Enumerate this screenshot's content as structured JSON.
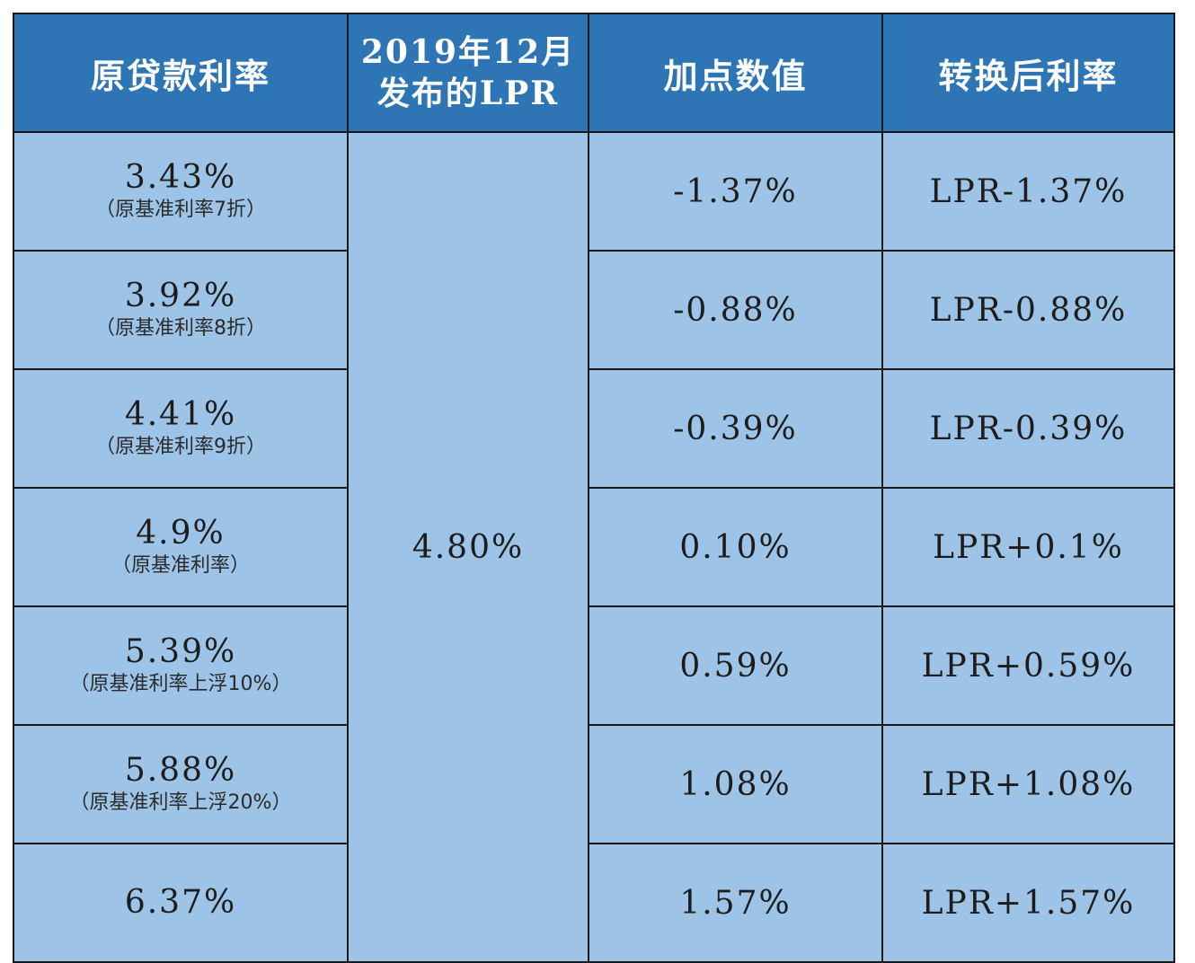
{
  "headers": {
    "original_rate": "原贷款利率",
    "lpr_line1": "2019年12月",
    "lpr_line2": "发布的LPR",
    "spread": "加点数值",
    "converted_rate": "转换后利率"
  },
  "lpr_value": "4.80%",
  "rows": [
    {
      "rate": "3.43%",
      "note": "（原基准利率7折）",
      "spread": "-1.37%",
      "converted": "LPR-1.37%"
    },
    {
      "rate": "3.92%",
      "note": "（原基准利率8折）",
      "spread": "-0.88%",
      "converted": "LPR-0.88%"
    },
    {
      "rate": "4.41%",
      "note": "（原基准利率9折）",
      "spread": "-0.39%",
      "converted": "LPR-0.39%"
    },
    {
      "rate": "4.9%",
      "note": "（原基准利率）",
      "spread": "0.10%",
      "converted": "LPR+0.1%"
    },
    {
      "rate": "5.39%",
      "note": "（原基准利率上浮10%）",
      "spread": "0.59%",
      "converted": "LPR+0.59%"
    },
    {
      "rate": "5.88%",
      "note": "（原基准利率上浮20%）",
      "spread": "1.08%",
      "converted": "LPR+1.08%"
    },
    {
      "rate": "6.37%",
      "note": "",
      "spread": "1.57%",
      "converted": "LPR+1.57%"
    }
  ],
  "colors": {
    "header_bg": "#2e75b6",
    "cell_bg": "#9dc3e6",
    "border": "#1a1a1a"
  }
}
